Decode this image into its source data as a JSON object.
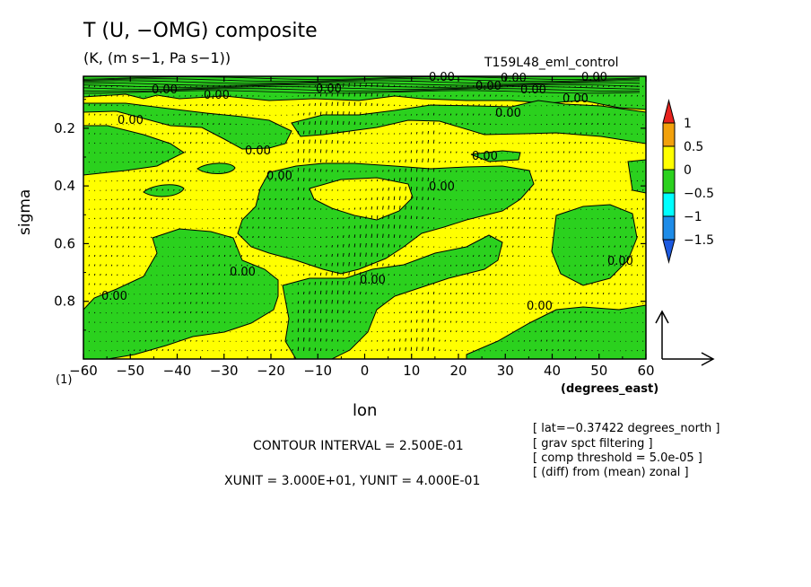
{
  "chart_data": {
    "type": "heatmap",
    "title": "T (U, −OMG) composite",
    "units": "(K, (m s−1, Pa s−1))",
    "run_name": "T159L48_eml_control",
    "xlabel": "lon",
    "x_units": "(degrees_east)",
    "ylabel": "sigma",
    "level_marker": "(1)",
    "xlim": [
      -60,
      60
    ],
    "ylim": [
      1.0,
      0.02
    ],
    "x_ticks": [
      -60,
      -50,
      -40,
      -30,
      -20,
      -10,
      0,
      10,
      20,
      30,
      40,
      50,
      60
    ],
    "x_tick_labels": [
      "−60",
      "−50",
      "−40",
      "−30",
      "−20",
      "−10",
      "0",
      "10",
      "20",
      "30",
      "40",
      "50",
      "60"
    ],
    "y_ticks": [
      0.2,
      0.4,
      0.6,
      0.8
    ],
    "y_tick_labels": [
      "0.2",
      "0.4",
      "0.6",
      "0.8"
    ],
    "colorbar": {
      "labels": [
        "1",
        "0.5",
        "0",
        "−0.5",
        "−1",
        "−1.5"
      ],
      "colors": [
        "#e8231e",
        "#f2a10c",
        "#ffff00",
        "#2bd11e",
        "#00ffff",
        "#1e8ce8",
        "#1c5ae0"
      ]
    },
    "contour_label": "0.00",
    "contour_interval": "CONTOUR INTERVAL = 2.500E-01",
    "vector_units": "XUNIT = 3.000E+01, YUNIT = 4.000E-01",
    "notes": [
      "[ lat=−0.37422 degrees_north ]",
      "[ grav spct filtering ]",
      "[ comp threshold = 5.0e-05 ]",
      "[ (diff) from (mean) zonal ]"
    ],
    "fill_colors": {
      "positive": "#ffff00",
      "negative": "#2bd11e"
    }
  }
}
